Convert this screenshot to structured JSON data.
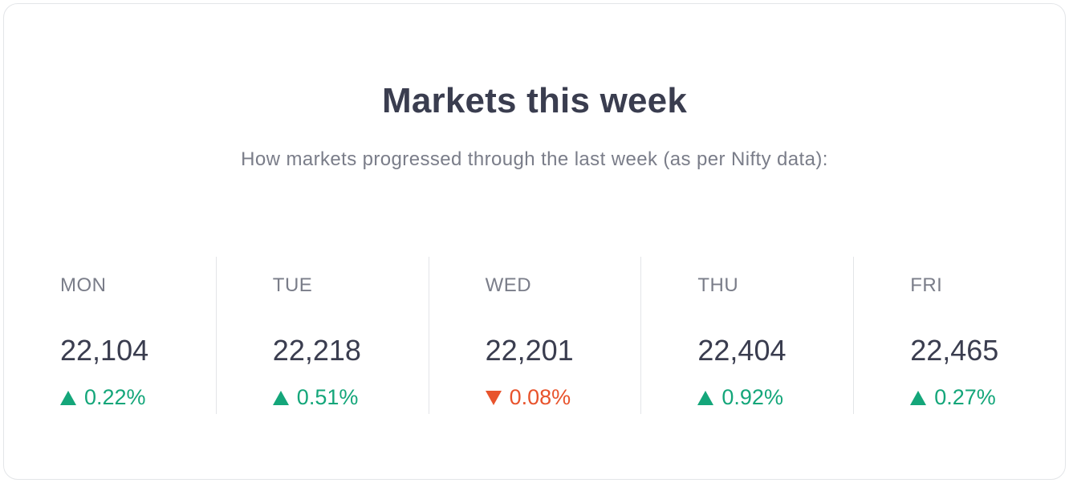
{
  "header": {
    "title": "Markets this week",
    "subtitle": "How markets progressed through the last week (as per Nifty data):"
  },
  "colors": {
    "up": "#14a67a",
    "down": "#e8532c",
    "text": "#3a3d4f",
    "muted": "#7a7d89",
    "border": "#e3e5e8"
  },
  "days": [
    {
      "label": "MON",
      "value": "22,104",
      "change": "0.22%",
      "direction": "up",
      "icon": "triangle-up-icon"
    },
    {
      "label": "TUE",
      "value": "22,218",
      "change": "0.51%",
      "direction": "up",
      "icon": "triangle-up-icon"
    },
    {
      "label": "WED",
      "value": "22,201",
      "change": "0.08%",
      "direction": "down",
      "icon": "triangle-down-icon"
    },
    {
      "label": "THU",
      "value": "22,404",
      "change": "0.92%",
      "direction": "up",
      "icon": "triangle-up-icon"
    },
    {
      "label": "FRI",
      "value": "22,465",
      "change": "0.27%",
      "direction": "up",
      "icon": "triangle-up-icon"
    }
  ]
}
